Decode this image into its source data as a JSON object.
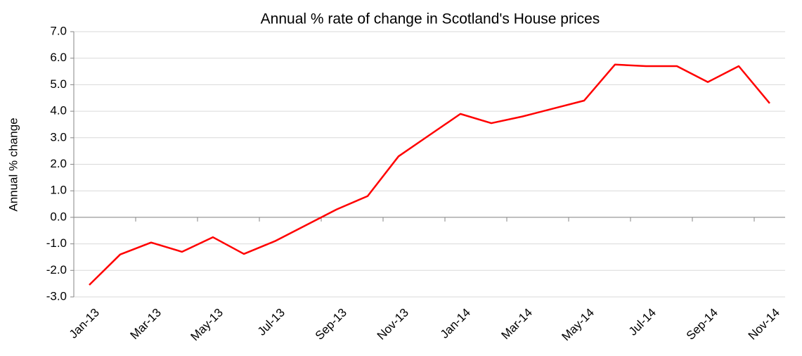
{
  "chart_data": {
    "type": "line",
    "title": "Annual % rate of change in Scotland's House prices",
    "y_label": "Annual % change",
    "categories": [
      "Jan-13",
      null,
      "Mar-13",
      null,
      "May-13",
      null,
      "Jul-13",
      null,
      "Sep-13",
      null,
      "Nov-13",
      null,
      "Jan-14",
      null,
      "Mar-14",
      null,
      "May-14",
      null,
      "Jul-14",
      null,
      "Sep-14",
      null,
      "Nov-14"
    ],
    "series": [
      {
        "name": "Annual % change",
        "color": "#ff0000",
        "values": [
          -2.55,
          -1.4,
          -0.95,
          -1.3,
          -0.75,
          -1.38,
          -0.9,
          -0.3,
          0.3,
          0.8,
          2.3,
          3.1,
          3.9,
          3.55,
          3.8,
          4.1,
          4.4,
          5.76,
          5.7,
          5.7,
          5.1,
          5.7,
          4.3
        ]
      }
    ],
    "ylim": [
      -3,
      7
    ],
    "yticks": [
      {
        "value": -3,
        "label": "-3.0"
      },
      {
        "value": -2,
        "label": "-2.0"
      },
      {
        "value": -1,
        "label": "-1.0"
      },
      {
        "value": 0,
        "label": "0.0"
      },
      {
        "value": 1,
        "label": "1.0"
      },
      {
        "value": 2,
        "label": "2.0"
      },
      {
        "value": 3,
        "label": "3.0"
      },
      {
        "value": 4,
        "label": "4.0"
      },
      {
        "value": 5,
        "label": "5.0"
      },
      {
        "value": 6,
        "label": "6.0"
      },
      {
        "value": 7,
        "label": "7.0"
      }
    ],
    "grid": true
  }
}
